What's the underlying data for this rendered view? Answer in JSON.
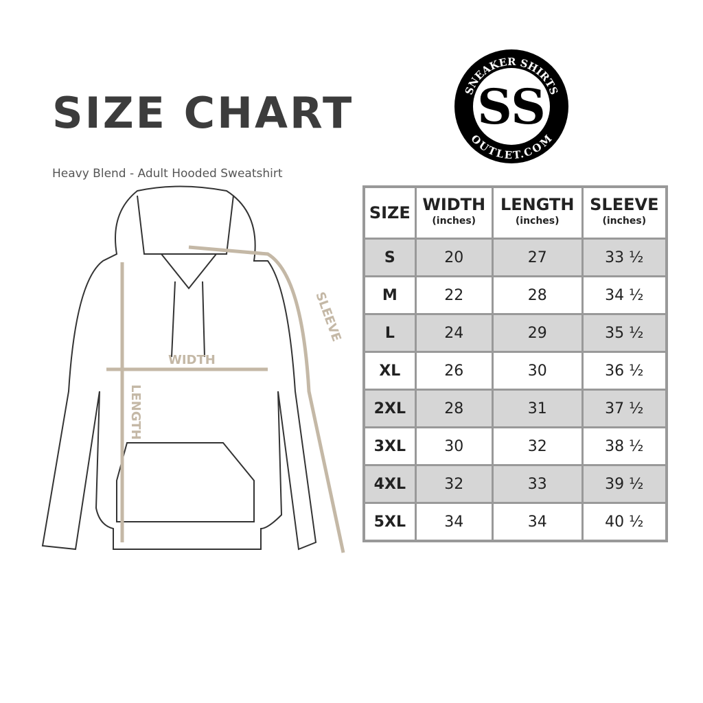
{
  "title": "SIZE CHART",
  "subtitle": "Heavy Blend - Adult Hooded Sweatshirt",
  "logo": {
    "text_top": "SNEAKER SHIRTS",
    "text_bottom": "OUTLET.COM",
    "monogram": "SS"
  },
  "diagram_labels": {
    "width": "WIDTH",
    "length": "LENGTH",
    "sleeve": "SLEEVE"
  },
  "colors": {
    "measure": "#c4b8a6",
    "border": "#999999",
    "shade": "#d6d6d6"
  },
  "table": {
    "headers": [
      {
        "label": "SIZE",
        "unit": ""
      },
      {
        "label": "WIDTH",
        "unit": "(inches)"
      },
      {
        "label": "LENGTH",
        "unit": "(inches)"
      },
      {
        "label": "SLEEVE",
        "unit": "(inches)"
      }
    ],
    "rows": [
      [
        "S",
        "20",
        "27",
        "33 ½"
      ],
      [
        "M",
        "22",
        "28",
        "34 ½"
      ],
      [
        "L",
        "24",
        "29",
        "35 ½"
      ],
      [
        "XL",
        "26",
        "30",
        "36 ½"
      ],
      [
        "2XL",
        "28",
        "31",
        "37 ½"
      ],
      [
        "3XL",
        "30",
        "32",
        "38 ½"
      ],
      [
        "4XL",
        "32",
        "33",
        "39 ½"
      ],
      [
        "5XL",
        "34",
        "34",
        "40 ½"
      ]
    ]
  }
}
